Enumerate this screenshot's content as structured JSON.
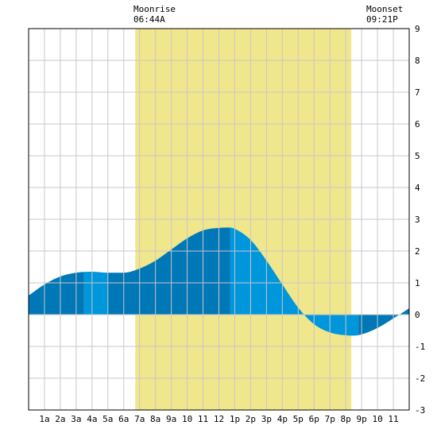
{
  "chart_data": {
    "type": "area",
    "title": "",
    "xlabel": "",
    "ylabel": "",
    "xlim": [
      0,
      24
    ],
    "ylim": [
      -3,
      9
    ],
    "y_ticks": [
      9,
      8,
      7,
      6,
      5,
      4,
      3,
      2,
      1,
      0,
      -1,
      -2,
      -3
    ],
    "x_tick_labels": [
      "1a",
      "2a",
      "3a",
      "4a",
      "5a",
      "6a",
      "7a",
      "8a",
      "9a",
      "10",
      "11",
      "12",
      "1p",
      "2p",
      "3p",
      "4p",
      "5p",
      "6p",
      "7p",
      "8p",
      "9p",
      "10",
      "11"
    ],
    "grid": true,
    "moonrise": {
      "label": "Moonrise",
      "time": "06:44A",
      "hour": 6.73
    },
    "moonset": {
      "label": "Moonset",
      "time": "09:21P",
      "hour": 20.35
    },
    "series": [
      {
        "values_hours": [
          0,
          1,
          2,
          3,
          4,
          5,
          6,
          7,
          8,
          9,
          10,
          11,
          12,
          12.7,
          13,
          14,
          15,
          16,
          17,
          18,
          19,
          20,
          20.5,
          21,
          22,
          23,
          24
        ],
        "values": [
          0.6,
          0.95,
          1.2,
          1.32,
          1.35,
          1.32,
          1.32,
          1.45,
          1.7,
          2.05,
          2.4,
          2.65,
          2.73,
          2.74,
          2.7,
          2.35,
          1.7,
          0.95,
          0.22,
          -0.3,
          -0.56,
          -0.65,
          -0.66,
          -0.62,
          -0.42,
          -0.12,
          0.2
        ]
      }
    ],
    "colors": {
      "moon_band": "#f0e68c",
      "tide_dark": "#0077b6",
      "tide_light": "#0096db",
      "grid": "#c8c8c8",
      "frame": "#000000"
    }
  }
}
